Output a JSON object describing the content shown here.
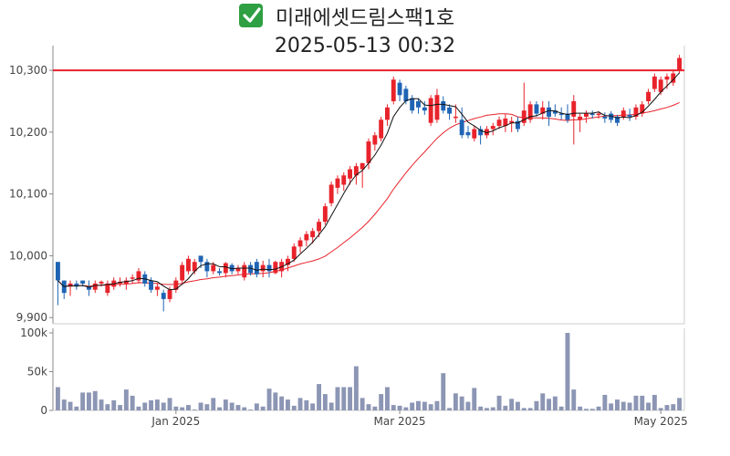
{
  "title": {
    "check_icon": "check-mark-icon",
    "name": "미래에셋드림스팩1호",
    "timestamp": "2025-05-13 00:32"
  },
  "colors": {
    "up": "#e8232b",
    "down": "#1f64b4",
    "ma_short": "#111111",
    "ma_long": "#e8232b",
    "ref_line": "#e8232b",
    "volume": "#8c96b4",
    "check_bg": "#2ea043"
  },
  "chart_data": [
    {
      "type": "candlestick",
      "title": "미래에셋드림스팩1호",
      "ylim": [
        9890,
        10340
      ],
      "yticks": [
        9900,
        10000,
        10100,
        10200,
        10300
      ],
      "ytick_labels": [
        "9,900",
        "10,000",
        "10,100",
        "10,200",
        "10,300"
      ],
      "reference_line": 10300,
      "overlays": [
        "moving-average-short",
        "moving-average-long"
      ],
      "ohlc": [
        [
          9990,
          9990,
          9920,
          9960
        ],
        [
          9960,
          9960,
          9930,
          9940
        ],
        [
          9950,
          9960,
          9935,
          9955
        ],
        [
          9955,
          9960,
          9945,
          9950
        ],
        [
          9960,
          9960,
          9950,
          9955
        ],
        [
          9950,
          9960,
          9935,
          9945
        ],
        [
          9945,
          9960,
          9940,
          9955
        ],
        [
          9955,
          9960,
          9950,
          9958
        ],
        [
          9940,
          9960,
          9935,
          9955
        ],
        [
          9950,
          9965,
          9945,
          9960
        ],
        [
          9955,
          9965,
          9950,
          9958
        ],
        [
          9955,
          9965,
          9945,
          9960
        ],
        [
          9965,
          9970,
          9955,
          9965
        ],
        [
          9960,
          9980,
          9955,
          9975
        ],
        [
          9970,
          9975,
          9950,
          9955
        ],
        [
          9960,
          9965,
          9940,
          9945
        ],
        [
          9945,
          9955,
          9935,
          9950
        ],
        [
          9940,
          9945,
          9910,
          9930
        ],
        [
          9930,
          9950,
          9925,
          9945
        ],
        [
          9945,
          9965,
          9940,
          9960
        ],
        [
          9960,
          9990,
          9955,
          9985
        ],
        [
          9975,
          10000,
          9970,
          9995
        ],
        [
          9975,
          9995,
          9970,
          9990
        ],
        [
          10000,
          10000,
          9980,
          9990
        ],
        [
          9990,
          9995,
          9965,
          9975
        ],
        [
          9975,
          9990,
          9970,
          9985
        ],
        [
          9975,
          9980,
          9968,
          9972
        ],
        [
          9972,
          9990,
          9965,
          9988
        ],
        [
          9985,
          9988,
          9970,
          9975
        ],
        [
          9975,
          9985,
          9970,
          9980
        ],
        [
          9965,
          9990,
          9960,
          9985
        ],
        [
          9985,
          9990,
          9968,
          9972
        ],
        [
          9990,
          9995,
          9965,
          9970
        ],
        [
          9975,
          9992,
          9965,
          9985
        ],
        [
          9985,
          9995,
          9965,
          9975
        ],
        [
          9972,
          9992,
          9970,
          9990
        ],
        [
          9975,
          9995,
          9965,
          9990
        ],
        [
          9985,
          10000,
          9975,
          9995
        ],
        [
          9995,
          10020,
          9990,
          10015
        ],
        [
          10015,
          10030,
          10005,
          10025
        ],
        [
          10025,
          10040,
          10015,
          10035
        ],
        [
          10030,
          10045,
          10020,
          10040
        ],
        [
          10040,
          10060,
          10030,
          10055
        ],
        [
          10055,
          10085,
          10050,
          10080
        ],
        [
          10085,
          10120,
          10080,
          10115
        ],
        [
          10110,
          10130,
          10100,
          10125
        ],
        [
          10115,
          10135,
          10105,
          10130
        ],
        [
          10125,
          10145,
          10115,
          10140
        ],
        [
          10130,
          10150,
          10115,
          10145
        ],
        [
          10140,
          10150,
          10110,
          10150
        ],
        [
          10150,
          10190,
          10140,
          10185
        ],
        [
          10180,
          10200,
          10170,
          10195
        ],
        [
          10190,
          10225,
          10185,
          10220
        ],
        [
          10220,
          10245,
          10210,
          10240
        ],
        [
          10250,
          10290,
          10245,
          10285
        ],
        [
          10280,
          10285,
          10250,
          10260
        ],
        [
          10270,
          10275,
          10245,
          10250
        ],
        [
          10255,
          10260,
          10230,
          10235
        ],
        [
          10250,
          10255,
          10230,
          10240
        ],
        [
          10240,
          10250,
          10228,
          10235
        ],
        [
          10215,
          10260,
          10210,
          10255
        ],
        [
          10220,
          10270,
          10215,
          10260
        ],
        [
          10250,
          10258,
          10230,
          10235
        ],
        [
          10240,
          10245,
          10220,
          10230
        ],
        [
          10225,
          10245,
          10215,
          10225
        ],
        [
          10220,
          10240,
          10190,
          10195
        ],
        [
          10200,
          10210,
          10190,
          10195
        ],
        [
          10190,
          10210,
          10185,
          10205
        ],
        [
          10205,
          10210,
          10180,
          10195
        ],
        [
          10195,
          10210,
          10190,
          10205
        ],
        [
          10205,
          10215,
          10195,
          10210
        ],
        [
          10210,
          10225,
          10205,
          10220
        ],
        [
          10210,
          10230,
          10200,
          10222
        ],
        [
          10215,
          10225,
          10200,
          10218
        ],
        [
          10218,
          10225,
          10200,
          10205
        ],
        [
          10215,
          10280,
          10210,
          10235
        ],
        [
          10220,
          10250,
          10215,
          10245
        ],
        [
          10245,
          10250,
          10225,
          10230
        ],
        [
          10230,
          10250,
          10220,
          10240
        ],
        [
          10240,
          10250,
          10210,
          10225
        ],
        [
          10235,
          10245,
          10225,
          10230
        ],
        [
          10230,
          10240,
          10220,
          10228
        ],
        [
          10230,
          10245,
          10215,
          10220
        ],
        [
          10225,
          10260,
          10180,
          10250
        ],
        [
          10220,
          10230,
          10200,
          10225
        ],
        [
          10225,
          10235,
          10215,
          10230
        ],
        [
          10230,
          10235,
          10222,
          10228
        ],
        [
          10230,
          10234,
          10222,
          10230
        ],
        [
          10225,
          10232,
          10215,
          10222
        ],
        [
          10230,
          10234,
          10215,
          10220
        ],
        [
          10225,
          10228,
          10210,
          10215
        ],
        [
          10225,
          10240,
          10220,
          10235
        ],
        [
          10228,
          10238,
          10218,
          10225
        ],
        [
          10225,
          10245,
          10220,
          10240
        ],
        [
          10230,
          10250,
          10225,
          10245
        ],
        [
          10250,
          10270,
          10245,
          10265
        ],
        [
          10270,
          10295,
          10265,
          10290
        ],
        [
          10265,
          10290,
          10260,
          10285
        ],
        [
          10285,
          10295,
          10270,
          10290
        ],
        [
          10280,
          10300,
          10275,
          10295
        ],
        [
          10300,
          10325,
          10295,
          10320
        ]
      ],
      "volume": [
        30,
        14,
        11,
        5,
        23,
        23,
        25,
        14,
        8,
        13,
        7,
        27,
        19,
        5,
        10,
        13,
        14,
        10,
        16,
        5,
        4,
        7,
        1,
        10,
        8,
        16,
        4,
        14,
        10,
        7,
        4,
        1,
        9,
        5,
        28,
        23,
        18,
        14,
        6,
        16,
        13,
        9,
        34,
        21,
        10,
        30,
        30,
        30,
        57,
        16,
        8,
        5,
        21,
        30,
        7,
        6,
        4,
        10,
        12,
        11,
        8,
        12,
        48,
        3,
        22,
        18,
        11,
        29,
        5,
        3,
        4,
        19,
        6,
        15,
        11,
        3,
        3,
        12,
        22,
        15,
        18,
        5,
        100,
        27,
        5,
        2,
        2,
        5,
        20,
        9,
        14,
        11,
        10,
        19,
        19,
        10,
        20,
        3,
        7,
        8,
        16
      ],
      "volume_ylim": [
        0,
        100000
      ],
      "volume_unit": 1000,
      "volume_ticks": [
        "0",
        "50k",
        "100k"
      ],
      "x_labels": [
        {
          "index": 19,
          "label": "Jan 2025"
        },
        {
          "index": 55,
          "label": "Mar 2025"
        },
        {
          "index": 97,
          "label": "May 2025"
        }
      ]
    }
  ]
}
